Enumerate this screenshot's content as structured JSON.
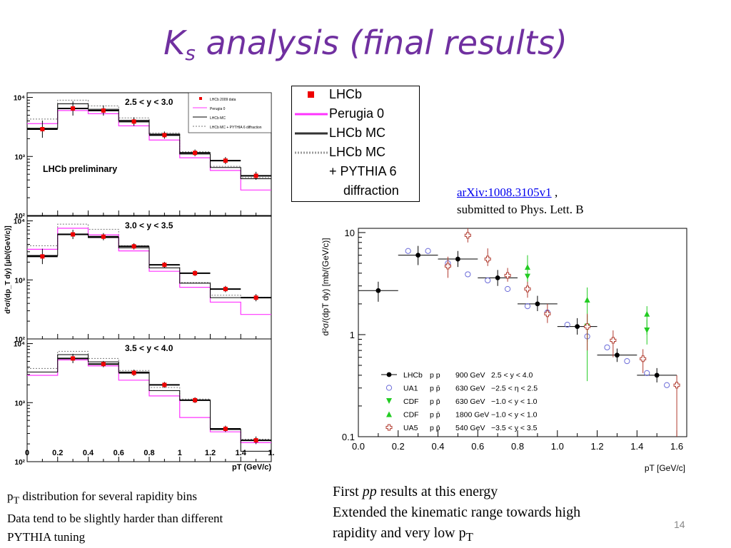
{
  "slide": {
    "title_main": "K",
    "title_sub": "s",
    "title_rest": " analysis (final results)",
    "slide_number": "14"
  },
  "legend": {
    "items": [
      {
        "label": "LHCb",
        "line2": "",
        "line3": "",
        "style": "marker",
        "color": "#ee0000"
      },
      {
        "label": "Perugia 0",
        "line2": "",
        "line3": "",
        "style": "line",
        "color": "#ff33ff"
      },
      {
        "label": "LHCb MC",
        "line2": "",
        "line3": "",
        "style": "line",
        "color": "#333333"
      },
      {
        "label": "LHCb MC",
        "line2": "+ PYTHIA 6",
        "line3": "diffraction",
        "style": "dotted",
        "color": "#999999"
      }
    ]
  },
  "arxiv": {
    "link_text": "arXiv:1008.3105v1",
    "after_link": " ,",
    "line2": "submitted to Phys. Lett. B"
  },
  "notes_left": {
    "line1_pre": "p",
    "line1_sub": "T",
    "line1_post": " distribution for several rapidity bins",
    "line2": "Data tend to be slightly harder than different",
    "line3": "PYTHIA tuning"
  },
  "notes_right": {
    "line1_pre": "First ",
    "line1_em": "pp",
    "line1_post": " results at this energy",
    "line2": "Extended  the kinematic range towards  high",
    "line3_pre": "rapidity and very low p",
    "line3_sub": "T"
  },
  "chart_data": [
    {
      "type": "bar",
      "subtype": "stacked-panels-histogram",
      "y_scale": "log",
      "xlabel": "p_T (GeV/c)",
      "ylabel": "d²σ/(dp_T dy) [μb/(GeV/c)]",
      "xticks": [
        "0",
        "0.2",
        "0.4",
        "0.6",
        "0.8",
        "1",
        "1.2",
        "1.4",
        "1."
      ],
      "ytick_labels": {
        "hi": "10⁴",
        "mid": "10³",
        "lo": "10²"
      },
      "ylim": [
        100,
        12000
      ],
      "xlim": [
        0,
        1.6
      ],
      "inner_legend": [
        "LHCb 2009 data",
        "Perugia 0",
        "LHCb MC",
        "LHCb MC + PYTHIA 6 diffraction"
      ],
      "annotation": "LHCb preliminary",
      "bins": [
        0,
        0.2,
        0.4,
        0.6,
        0.8,
        1.0,
        1.2,
        1.4,
        1.6
      ],
      "panels": [
        {
          "label": "2.5 < y < 3.0",
          "data": [
            2900,
            6500,
            6000,
            3900,
            2300,
            1150,
            850,
            470
          ],
          "data_err": [
            0.4,
            0.32,
            0.22,
            0.18,
            0.15,
            0.14,
            0.15,
            0.17
          ],
          "lhcb_mc": [
            3000,
            7800,
            6300,
            4100,
            2400,
            1100,
            650,
            420
          ],
          "perugia0": [
            3600,
            6000,
            5300,
            3300,
            1900,
            950,
            580,
            270
          ],
          "diffraction": [
            4300,
            9000,
            7200,
            4500,
            2500,
            1200,
            680,
            440
          ]
        },
        {
          "label": "3.0 < y < 3.5",
          "data": [
            2500,
            5900,
            5400,
            3700,
            1800,
            1300,
            700,
            500
          ],
          "data_err": [
            0.35,
            0.2,
            0.15,
            0.13,
            0.12,
            0.12,
            0.13,
            0.15
          ],
          "lhcb_mc": [
            2600,
            6000,
            5200,
            3500,
            1600,
            880,
            500,
            500
          ],
          "perugia0": [
            3300,
            7500,
            5800,
            3100,
            1400,
            750,
            420,
            260
          ],
          "diffraction": [
            3800,
            8800,
            7200,
            3800,
            1800,
            900,
            550,
            510
          ]
        },
        {
          "label": "3.5 < y < 4.0",
          "data": [
            null,
            5600,
            4500,
            3200,
            2000,
            1100,
            360,
            230
          ],
          "data_err": [
            0,
            0.2,
            0.13,
            0.13,
            0.12,
            0.12,
            0.13,
            0.16
          ],
          "lhcb_mc": [
            3300,
            6500,
            4900,
            3300,
            1600,
            1100,
            350,
            150
          ],
          "perugia0": [
            2900,
            5300,
            4200,
            2400,
            1300,
            560,
            320,
            210
          ],
          "diffraction": [
            3800,
            7400,
            5600,
            3500,
            1800,
            1150,
            360,
            240
          ]
        }
      ]
    },
    {
      "type": "scatter",
      "y_scale": "log",
      "xlabel": "p_T [GeV/c]",
      "ylabel": "d²σ/(dp_T dy) [mb/(GeV/c)]",
      "xlim": [
        0,
        1.65
      ],
      "ylim": [
        0.1,
        11
      ],
      "xticks": [
        "0.0",
        "0.2",
        "0.4",
        "0.6",
        "0.8",
        "1.0",
        "1.2",
        "1.4",
        "1.6"
      ],
      "yticks": [
        {
          "v": 10,
          "label": "10"
        },
        {
          "v": 1,
          "label": "1"
        },
        {
          "v": 0.1,
          "label": "0.1"
        }
      ],
      "series": [
        {
          "name": "LHCb",
          "beam": "p p",
          "energy": "900 GeV",
          "range": "2.5 < y < 4.0",
          "marker": "filled-circle",
          "color": "#000000",
          "points": [
            {
              "x": 0.1,
              "y": 2.7,
              "xerr": 0.1,
              "ylo": 2.1,
              "yhi": 3.3
            },
            {
              "x": 0.3,
              "y": 6.0,
              "xerr": 0.1,
              "ylo": 4.8,
              "yhi": 7.4
            },
            {
              "x": 0.5,
              "y": 5.5,
              "xerr": 0.1,
              "ylo": 4.6,
              "yhi": 6.6
            },
            {
              "x": 0.7,
              "y": 3.6,
              "xerr": 0.1,
              "ylo": 3.0,
              "yhi": 4.3
            },
            {
              "x": 0.9,
              "y": 2.0,
              "xerr": 0.1,
              "ylo": 1.7,
              "yhi": 2.4
            },
            {
              "x": 1.1,
              "y": 1.2,
              "xerr": 0.1,
              "ylo": 1.0,
              "yhi": 1.45
            },
            {
              "x": 1.3,
              "y": 0.63,
              "xerr": 0.1,
              "ylo": 0.54,
              "yhi": 0.73
            },
            {
              "x": 1.5,
              "y": 0.4,
              "xerr": 0.1,
              "ylo": 0.34,
              "yhi": 0.47
            }
          ]
        },
        {
          "name": "UA1",
          "beam": "p p̄",
          "energy": "630 GeV",
          "range": "−2.5 < η < 2.5",
          "marker": "open-circle",
          "color": "#6a6ad8",
          "points": [
            {
              "x": 0.25,
              "y": 6.6
            },
            {
              "x": 0.35,
              "y": 6.6
            },
            {
              "x": 0.45,
              "y": 5.0
            },
            {
              "x": 0.55,
              "y": 3.9
            },
            {
              "x": 0.65,
              "y": 3.4
            },
            {
              "x": 0.75,
              "y": 2.8
            },
            {
              "x": 0.85,
              "y": 1.9
            },
            {
              "x": 0.95,
              "y": 1.65
            },
            {
              "x": 1.05,
              "y": 1.25
            },
            {
              "x": 1.15,
              "y": 0.96
            },
            {
              "x": 1.25,
              "y": 0.75
            },
            {
              "x": 1.35,
              "y": 0.55
            },
            {
              "x": 1.45,
              "y": 0.42
            },
            {
              "x": 1.55,
              "y": 0.32
            }
          ]
        },
        {
          "name": "CDF",
          "beam": "p p̄",
          "energy": "630 GeV",
          "range": "−1.0 < y < 1.0",
          "marker": "filled-triangle-down",
          "color": "#22cc22",
          "points": [
            {
              "x": 0.85,
              "y": 3.7,
              "ylo": 2.6,
              "yhi": 4.9
            },
            {
              "x": 1.15,
              "y": 1.2,
              "ylo": 0.85,
              "yhi": 1.55
            },
            {
              "x": 1.45,
              "y": 1.1,
              "ylo": 0.8,
              "yhi": 1.4
            }
          ]
        },
        {
          "name": "CDF",
          "beam": "p p̄",
          "energy": "1800 GeV",
          "range": "−1.0 < y < 1.0",
          "marker": "filled-triangle-up",
          "color": "#22cc22",
          "points": [
            {
              "x": 0.85,
              "y": 4.6,
              "ylo": 3.2,
              "yhi": 6.0
            },
            {
              "x": 1.15,
              "y": 2.2,
              "ylo": 0.35,
              "yhi": 2.9
            },
            {
              "x": 1.45,
              "y": 1.6,
              "ylo": 1.0,
              "yhi": 1.9
            }
          ]
        },
        {
          "name": "UA5",
          "beam": "p p̄",
          "energy": "540 GeV",
          "range": "−3.5 < y < 3.5",
          "marker": "open-cross",
          "color": "#b03a2e",
          "points": [
            {
              "x": 0.45,
              "y": 4.7,
              "ylo": 3.6,
              "yhi": 5.8
            },
            {
              "x": 0.55,
              "y": 9.4,
              "ylo": 8.0,
              "yhi": 11
            },
            {
              "x": 0.65,
              "y": 5.5,
              "ylo": 4.7,
              "yhi": 7.0
            },
            {
              "x": 0.75,
              "y": 3.8,
              "ylo": 3.3,
              "yhi": 4.5
            },
            {
              "x": 0.85,
              "y": 2.8,
              "ylo": 2.3,
              "yhi": 3.3
            },
            {
              "x": 0.95,
              "y": 1.6,
              "ylo": 1.3,
              "yhi": 2.0
            },
            {
              "x": 1.15,
              "y": 1.2,
              "ylo": 0.7,
              "yhi": 1.6
            },
            {
              "x": 1.28,
              "y": 0.88,
              "ylo": 0.6,
              "yhi": 1.1
            },
            {
              "x": 1.43,
              "y": 0.58,
              "ylo": 0.42,
              "yhi": 0.72
            },
            {
              "x": 1.6,
              "y": 0.32,
              "ylo": 0.1,
              "yhi": 0.4
            }
          ]
        }
      ]
    }
  ]
}
